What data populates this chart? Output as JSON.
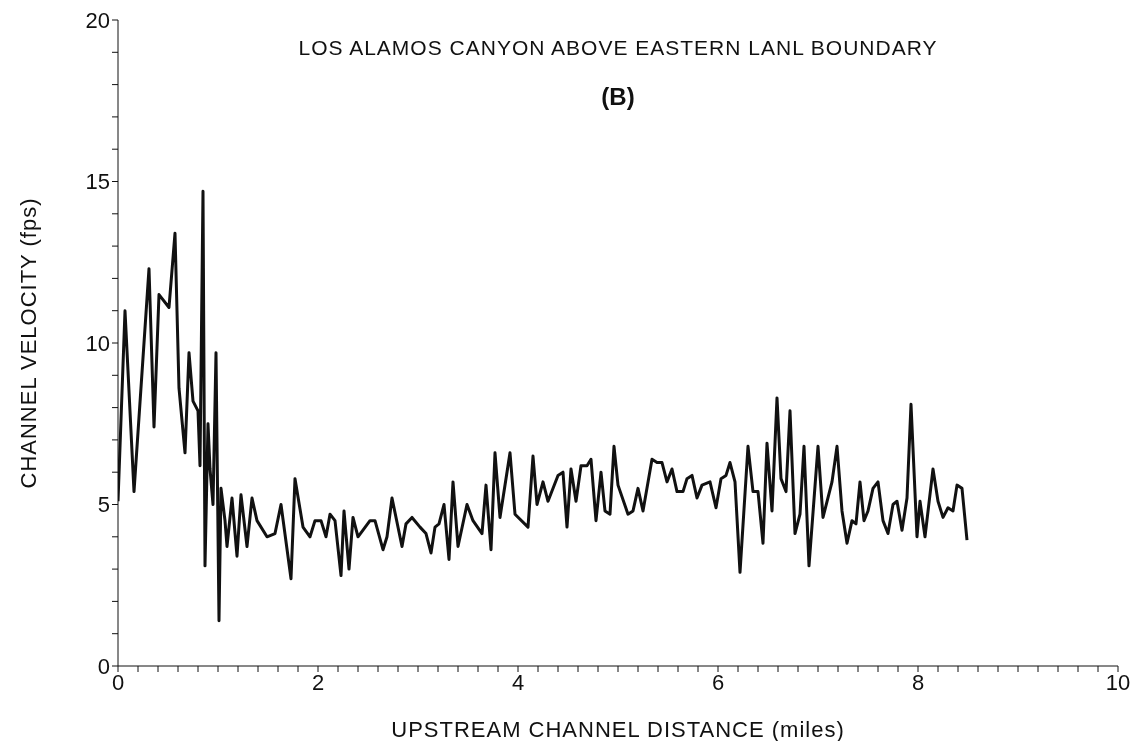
{
  "chart_data": {
    "type": "line",
    "title": "LOS ALAMOS CANYON ABOVE EASTERN LANL BOUNDARY",
    "subtitle": "(B)",
    "xlabel": "UPSTREAM CHANNEL DISTANCE (miles)",
    "ylabel": "CHANNEL VELOCITY (fps)",
    "xlim": [
      0,
      10
    ],
    "ylim": [
      0,
      20
    ],
    "xticks": [
      0,
      {
        "value": 0.2,
        "label": null
      },
      {
        "value": 0.4,
        "label": null
      },
      {
        "value": 0.6,
        "label": null
      },
      {
        "value": 0.8,
        "label": null
      },
      {
        "value": 1,
        "label": null
      },
      {
        "value": 1.2,
        "label": null
      },
      {
        "value": 1.4,
        "label": null
      },
      {
        "value": 1.6,
        "label": null
      },
      {
        "value": 1.8,
        "label": null
      },
      2,
      {
        "value": 2.2,
        "label": null
      },
      {
        "value": 2.4,
        "label": null
      },
      {
        "value": 2.6,
        "label": null
      },
      {
        "value": 2.8,
        "label": null
      },
      {
        "value": 3,
        "label": null
      },
      {
        "value": 3.2,
        "label": null
      },
      {
        "value": 3.4,
        "label": null
      },
      {
        "value": 3.6,
        "label": null
      },
      {
        "value": 3.8,
        "label": null
      },
      4,
      {
        "value": 4.2,
        "label": null
      },
      {
        "value": 4.4,
        "label": null
      },
      {
        "value": 4.6,
        "label": null
      },
      {
        "value": 4.8,
        "label": null
      },
      {
        "value": 5,
        "label": null
      },
      {
        "value": 5.2,
        "label": null
      },
      {
        "value": 5.4,
        "label": null
      },
      {
        "value": 5.6,
        "label": null
      },
      {
        "value": 5.8,
        "label": null
      },
      6,
      {
        "value": 6.2,
        "label": null
      },
      {
        "value": 6.4,
        "label": null
      },
      {
        "value": 6.6,
        "label": null
      },
      {
        "value": 6.8,
        "label": null
      },
      {
        "value": 7,
        "label": null
      },
      {
        "value": 7.2,
        "label": null
      },
      {
        "value": 7.4,
        "label": null
      },
      {
        "value": 7.6,
        "label": null
      },
      {
        "value": 7.8,
        "label": null
      },
      8,
      {
        "value": 8.2,
        "label": null
      },
      {
        "value": 8.4,
        "label": null
      },
      {
        "value": 8.6,
        "label": null
      },
      {
        "value": 8.8,
        "label": null
      },
      {
        "value": 9,
        "label": null
      },
      {
        "value": 9.2,
        "label": null
      },
      {
        "value": 9.4,
        "label": null
      },
      {
        "value": 9.6,
        "label": null
      },
      {
        "value": 9.8,
        "label": null
      },
      10
    ],
    "yticks": [
      0,
      {
        "value": 1,
        "label": null
      },
      {
        "value": 2,
        "label": null
      },
      {
        "value": 3,
        "label": null
      },
      {
        "value": 4,
        "label": null
      },
      5,
      {
        "value": 6,
        "label": null
      },
      {
        "value": 7,
        "label": null
      },
      {
        "value": 8,
        "label": null
      },
      {
        "value": 9,
        "label": null
      },
      10,
      {
        "value": 11,
        "label": null
      },
      {
        "value": 12,
        "label": null
      },
      {
        "value": 13,
        "label": null
      },
      {
        "value": 14,
        "label": null
      },
      15,
      {
        "value": 16,
        "label": null
      },
      {
        "value": 17,
        "label": null
      },
      {
        "value": 18,
        "label": null
      },
      {
        "value": 19,
        "label": null
      },
      20
    ],
    "marker": "none",
    "line_style": "solid",
    "series": [
      {
        "color": "#111111",
        "x": [
          0,
          0.07,
          0.16,
          0.31,
          0.36,
          0.41,
          0.51,
          0.57,
          0.61,
          0.67,
          0.71,
          0.75,
          0.8,
          0.82,
          0.85,
          0.87,
          0.9,
          0.92,
          0.95,
          0.98,
          1.01,
          1.03,
          1.07,
          1.09,
          1.14,
          1.19,
          1.23,
          1.29,
          1.34,
          1.39,
          1.49,
          1.57,
          1.63,
          1.73,
          1.77,
          1.85,
          1.92,
          1.97,
          2.03,
          2.08,
          2.12,
          2.17,
          2.23,
          2.26,
          2.31,
          2.35,
          2.4,
          2.52,
          2.57,
          2.65,
          2.69,
          2.74,
          2.84,
          2.88,
          2.94,
          3.02,
          3.08,
          3.13,
          3.17,
          3.21,
          3.26,
          3.31,
          3.35,
          3.4,
          3.49,
          3.55,
          3.64,
          3.68,
          3.73,
          3.77,
          3.82,
          3.92,
          3.97,
          4.1,
          4.15,
          4.19,
          4.25,
          4.3,
          4.4,
          4.45,
          4.49,
          4.53,
          4.58,
          4.63,
          4.69,
          4.73,
          4.78,
          4.83,
          4.87,
          4.92,
          4.96,
          5,
          5.1,
          5.15,
          5.2,
          5.25,
          5.34,
          5.39,
          5.44,
          5.49,
          5.54,
          5.59,
          5.65,
          5.69,
          5.74,
          5.79,
          5.84,
          5.92,
          5.98,
          6.03,
          6.08,
          6.12,
          6.17,
          6.22,
          6.3,
          6.35,
          6.4,
          6.45,
          6.49,
          6.54,
          6.59,
          6.63,
          6.68,
          6.72,
          6.77,
          6.82,
          6.86,
          6.91,
          7,
          7.05,
          7.14,
          7.19,
          7.24,
          7.29,
          7.34,
          7.38,
          7.42,
          7.46,
          7.5,
          7.55,
          7.6,
          7.65,
          7.7,
          7.75,
          7.79,
          7.84,
          7.89,
          7.93,
          7.99,
          8.02,
          8.07,
          8.15,
          8.2,
          8.25,
          8.3,
          8.35,
          8.39,
          8.44,
          8.49
        ],
        "values": [
          5.1,
          11,
          5.4,
          12.3,
          7.4,
          11.5,
          11.1,
          13.4,
          8.6,
          6.6,
          9.7,
          8.2,
          7.9,
          6.2,
          14.7,
          3.1,
          7.5,
          6.1,
          5,
          9.7,
          1.4,
          5.5,
          4.5,
          3.7,
          5.2,
          3.4,
          5.3,
          3.7,
          5.2,
          4.5,
          4,
          4.1,
          5,
          2.7,
          5.8,
          4.3,
          4,
          4.5,
          4.5,
          4,
          4.7,
          4.5,
          2.8,
          4.8,
          3,
          4.6,
          4,
          4.5,
          4.5,
          3.6,
          4,
          5.2,
          3.7,
          4.4,
          4.6,
          4.3,
          4.1,
          3.5,
          4.3,
          4.4,
          5,
          3.3,
          5.7,
          3.7,
          5,
          4.5,
          4.1,
          5.6,
          3.6,
          6.6,
          4.6,
          6.6,
          4.7,
          4.3,
          6.5,
          5,
          5.7,
          5.1,
          5.9,
          6,
          4.3,
          6.1,
          5.1,
          6.2,
          6.2,
          6.4,
          4.5,
          6,
          4.8,
          4.7,
          6.8,
          5.6,
          4.7,
          4.8,
          5.5,
          4.8,
          6.4,
          6.3,
          6.3,
          5.7,
          6.1,
          5.4,
          5.4,
          5.8,
          5.9,
          5.2,
          5.6,
          5.7,
          4.9,
          5.8,
          5.9,
          6.3,
          5.7,
          2.9,
          6.8,
          5.4,
          5.4,
          3.8,
          6.9,
          4.8,
          8.3,
          5.8,
          5.4,
          7.9,
          4.1,
          4.7,
          6.8,
          3.1,
          6.8,
          4.6,
          5.7,
          6.8,
          4.8,
          3.8,
          4.5,
          4.4,
          5.7,
          4.5,
          4.8,
          5.5,
          5.7,
          4.5,
          4.1,
          5,
          5.1,
          4.2,
          5.2,
          8.1,
          4,
          5.1,
          4,
          6.1,
          5.1,
          4.6,
          4.9,
          4.8,
          5.6,
          5.5,
          3.9
        ]
      }
    ]
  }
}
